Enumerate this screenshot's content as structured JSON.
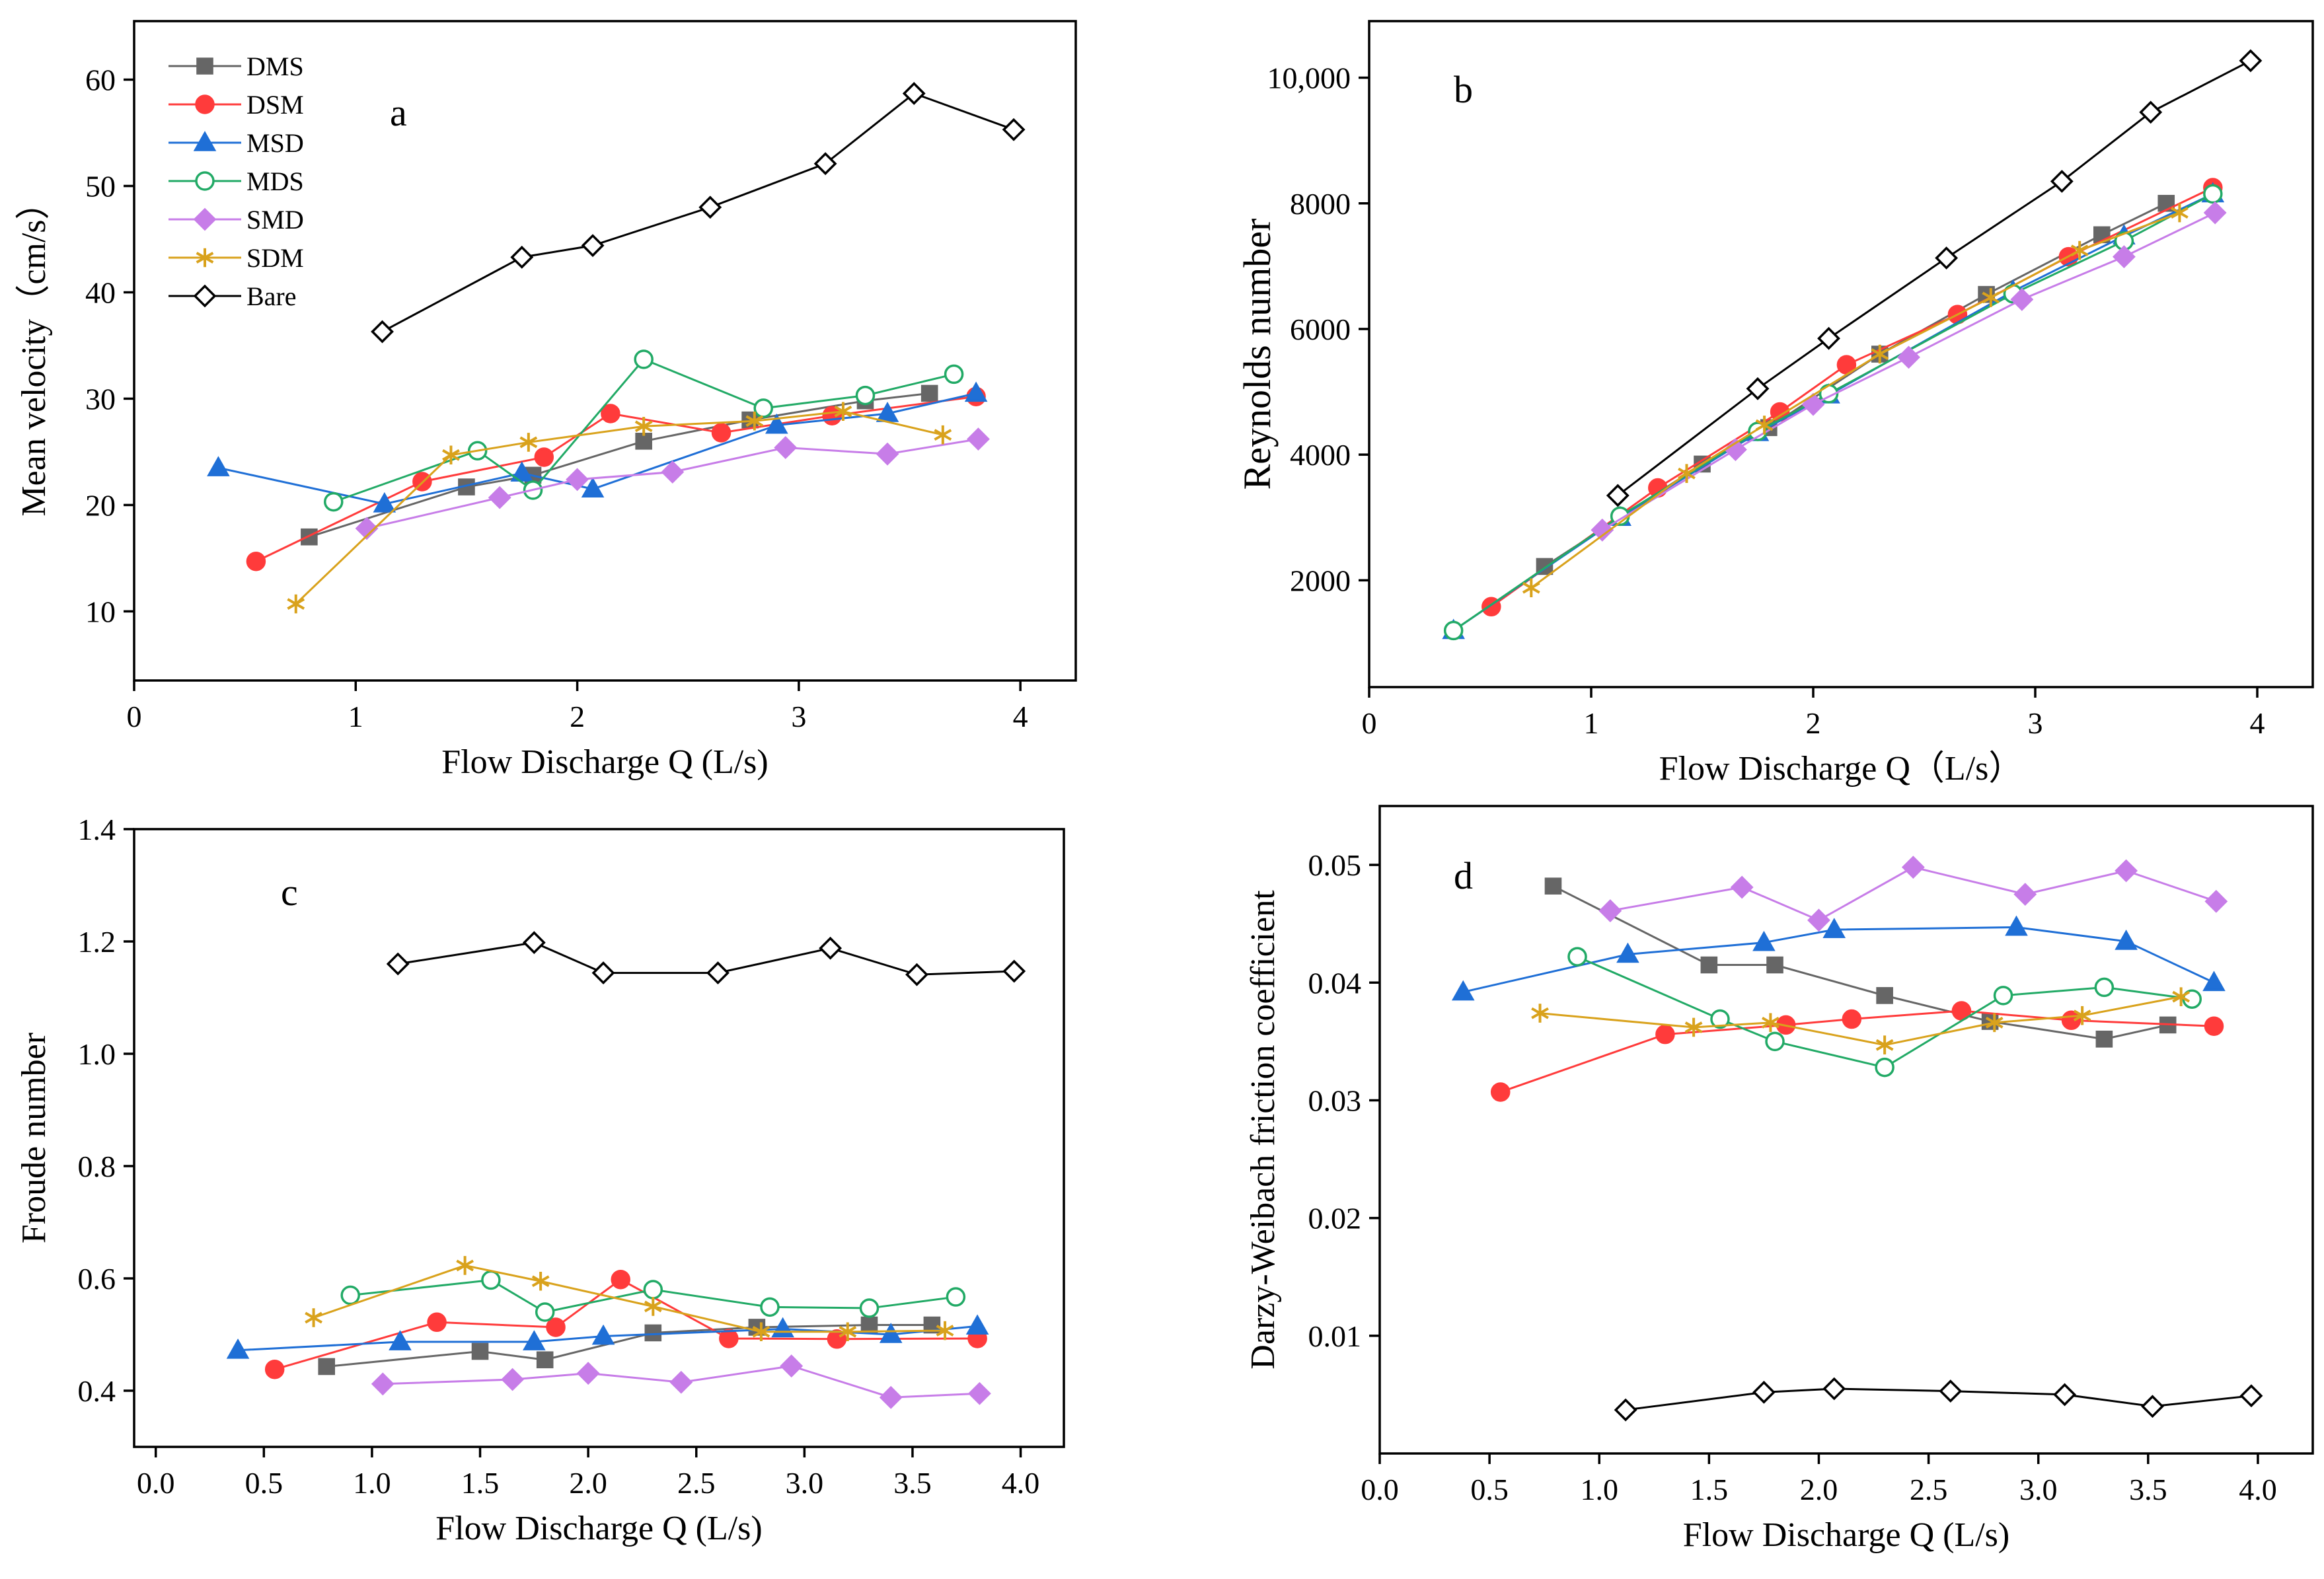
{
  "marker_styles": {
    "DMS": {
      "color": "#666666",
      "shape": "square",
      "fill": true
    },
    "DSM": {
      "color": "#ff3b3b",
      "shape": "circle",
      "fill": true
    },
    "MSD": {
      "color": "#1f6fd6",
      "shape": "triangle",
      "fill": true
    },
    "MDS": {
      "color": "#22aa66",
      "shape": "circle",
      "fill": false
    },
    "SMD": {
      "color": "#c77de8",
      "shape": "diamond",
      "fill": true
    },
    "SDM": {
      "color": "#d9a21c",
      "shape": "asterisk",
      "fill": false
    },
    "Bare": {
      "color": "#000000",
      "shape": "diamond",
      "fill": false
    }
  },
  "chart_data": [
    {
      "type": "line",
      "panel_label": "a",
      "xlabel": "Flow Discharge Q (L/s)",
      "ylabel": "Mean velocity（cm/s）",
      "xlim": [
        0,
        4.25
      ],
      "ylim": [
        3.5,
        65.5
      ],
      "xticks": [
        0,
        1,
        2,
        3,
        4
      ],
      "xtick_labels": [
        "0",
        "1",
        "2",
        "3",
        "4"
      ],
      "yticks": [
        10,
        20,
        30,
        40,
        50,
        60
      ],
      "ytick_labels": [
        "10",
        "20",
        "30",
        "40",
        "50",
        "60"
      ],
      "legend": {
        "position": "top-left",
        "entries": [
          "DMS",
          "DSM",
          "MSD",
          "MDS",
          "SMD",
          "SDM",
          "Bare"
        ]
      },
      "series": [
        {
          "name": "DMS",
          "x": [
            0.79,
            1.5,
            1.8,
            2.3,
            2.78,
            3.3,
            3.59
          ],
          "y": [
            17.0,
            21.7,
            22.8,
            26.0,
            28.0,
            29.8,
            30.5
          ]
        },
        {
          "name": "DSM",
          "x": [
            0.55,
            1.3,
            1.85,
            2.15,
            2.65,
            3.15,
            3.8
          ],
          "y": [
            14.7,
            22.2,
            24.5,
            28.6,
            26.8,
            28.4,
            30.2
          ]
        },
        {
          "name": "MSD",
          "x": [
            0.38,
            1.13,
            1.75,
            2.07,
            2.9,
            3.4,
            3.8
          ],
          "y": [
            23.5,
            20.1,
            23.0,
            21.5,
            27.5,
            28.6,
            30.5
          ]
        },
        {
          "name": "MDS",
          "x": [
            0.9,
            1.55,
            1.8,
            2.3,
            2.84,
            3.3,
            3.7
          ],
          "y": [
            20.3,
            25.1,
            21.4,
            33.7,
            29.1,
            30.3,
            32.3
          ]
        },
        {
          "name": "SMD",
          "x": [
            1.05,
            1.65,
            2.0,
            2.43,
            2.94,
            3.4,
            3.81
          ],
          "y": [
            17.8,
            20.7,
            22.4,
            23.1,
            25.4,
            24.8,
            26.2
          ]
        },
        {
          "name": "SDM",
          "x": [
            0.73,
            1.43,
            1.78,
            2.3,
            2.8,
            3.2,
            3.65
          ],
          "y": [
            10.7,
            24.7,
            25.9,
            27.4,
            27.9,
            28.8,
            26.6
          ]
        },
        {
          "name": "Bare",
          "x": [
            1.12,
            1.75,
            2.07,
            2.6,
            3.12,
            3.52,
            3.97
          ],
          "y": [
            36.3,
            43.3,
            44.4,
            48.0,
            52.1,
            58.7,
            55.3
          ]
        }
      ]
    },
    {
      "type": "line",
      "panel_label": "b",
      "xlabel": "Flow Discharge Q（L/s）",
      "ylabel": "Reynolds number",
      "xlim": [
        0,
        4.25
      ],
      "ylim": [
        300,
        10900
      ],
      "xticks": [
        0,
        1,
        2,
        3,
        4
      ],
      "xtick_labels": [
        "0",
        "1",
        "2",
        "3",
        "4"
      ],
      "yticks": [
        2000,
        4000,
        6000,
        8000,
        10000
      ],
      "ytick_labels": [
        "2000",
        "4000",
        "6000",
        "8000",
        "10,000"
      ],
      "legend": null,
      "series": [
        {
          "name": "DMS",
          "x": [
            0.79,
            1.5,
            1.8,
            2.3,
            2.78,
            3.3,
            3.59
          ],
          "y": [
            2220,
            3850,
            4430,
            5600,
            6550,
            7500,
            8000
          ]
        },
        {
          "name": "DSM",
          "x": [
            0.55,
            1.3,
            1.85,
            2.15,
            2.65,
            3.15,
            3.8
          ],
          "y": [
            1580,
            3470,
            4680,
            5430,
            6230,
            7150,
            8250
          ]
        },
        {
          "name": "MSD",
          "x": [
            0.38,
            1.13,
            1.75,
            2.07,
            2.9,
            3.4,
            3.8
          ],
          "y": [
            1200,
            3000,
            4350,
            4950,
            6600,
            7480,
            8150
          ]
        },
        {
          "name": "MDS",
          "x": [
            0.38,
            1.13,
            1.75,
            2.07,
            2.9,
            3.4,
            3.8
          ],
          "y": [
            1200,
            3020,
            4370,
            4970,
            6560,
            7400,
            8150
          ]
        },
        {
          "name": "SMD",
          "x": [
            1.05,
            1.65,
            2.0,
            2.43,
            2.94,
            3.4,
            3.81
          ],
          "y": [
            2800,
            4080,
            4800,
            5550,
            6470,
            7150,
            7850
          ]
        },
        {
          "name": "SDM",
          "x": [
            0.73,
            1.43,
            1.78,
            2.3,
            2.8,
            3.2,
            3.65
          ],
          "y": [
            1880,
            3700,
            4470,
            5600,
            6500,
            7250,
            7850
          ]
        },
        {
          "name": "Bare",
          "x": [
            1.12,
            1.75,
            2.07,
            2.6,
            3.12,
            3.52,
            3.97
          ],
          "y": [
            3350,
            5050,
            5850,
            7130,
            8350,
            9450,
            10270
          ]
        }
      ]
    },
    {
      "type": "line",
      "panel_label": "c",
      "xlabel": "Flow Discharge Q (L/s)",
      "ylabel": "Froude number",
      "xlim": [
        -0.1,
        4.2
      ],
      "ylim": [
        0.3,
        1.4
      ],
      "xticks": [
        0.0,
        0.5,
        1.0,
        1.5,
        2.0,
        2.5,
        3.0,
        3.5,
        4.0
      ],
      "xtick_labels": [
        "0.0",
        "0.5",
        "1.0",
        "1.5",
        "2.0",
        "2.5",
        "3.0",
        "3.5",
        "4.0"
      ],
      "yticks": [
        0.4,
        0.6,
        0.8,
        1.0,
        1.2,
        1.4
      ],
      "ytick_labels": [
        "0.4",
        "0.6",
        "0.8",
        "1.0",
        "1.2",
        "1.4"
      ],
      "legend": null,
      "series": [
        {
          "name": "DMS",
          "x": [
            0.79,
            1.5,
            1.8,
            2.3,
            2.78,
            3.3,
            3.59
          ],
          "y": [
            0.443,
            0.47,
            0.455,
            0.503,
            0.513,
            0.517,
            0.517
          ]
        },
        {
          "name": "DSM",
          "x": [
            0.55,
            1.3,
            1.85,
            2.15,
            2.65,
            3.15,
            3.8
          ],
          "y": [
            0.438,
            0.522,
            0.513,
            0.598,
            0.493,
            0.492,
            0.493
          ]
        },
        {
          "name": "MSD",
          "x": [
            0.38,
            1.13,
            1.75,
            2.07,
            2.9,
            3.4,
            3.8
          ],
          "y": [
            0.472,
            0.487,
            0.487,
            0.497,
            0.51,
            0.5,
            0.515
          ]
        },
        {
          "name": "MDS",
          "x": [
            0.9,
            1.55,
            1.8,
            2.3,
            2.84,
            3.3,
            3.7
          ],
          "y": [
            0.57,
            0.597,
            0.54,
            0.58,
            0.549,
            0.547,
            0.567
          ]
        },
        {
          "name": "SMD",
          "x": [
            1.05,
            1.65,
            2.0,
            2.43,
            2.94,
            3.4,
            3.81
          ],
          "y": [
            0.412,
            0.42,
            0.431,
            0.415,
            0.444,
            0.388,
            0.395
          ]
        },
        {
          "name": "SDM",
          "x": [
            0.73,
            1.43,
            1.78,
            2.3,
            2.8,
            3.2,
            3.65
          ],
          "y": [
            0.53,
            0.623,
            0.595,
            0.55,
            0.505,
            0.505,
            0.507
          ]
        },
        {
          "name": "Bare",
          "x": [
            1.12,
            1.75,
            2.07,
            2.6,
            3.12,
            3.52,
            3.97
          ],
          "y": [
            1.16,
            1.198,
            1.144,
            1.144,
            1.188,
            1.141,
            1.147
          ]
        }
      ]
    },
    {
      "type": "line",
      "panel_label": "d",
      "xlabel": "Flow Discharge Q (L/s)",
      "ylabel": "Darzy-Weibach friction coefficient",
      "xlim": [
        0,
        4.25
      ],
      "ylim": [
        0,
        0.055
      ],
      "xticks": [
        0.0,
        0.5,
        1.0,
        1.5,
        2.0,
        2.5,
        3.0,
        3.5,
        4.0
      ],
      "xtick_labels": [
        "0.0",
        "0.5",
        "1.0",
        "1.5",
        "2.0",
        "2.5",
        "3.0",
        "3.5",
        "4.0"
      ],
      "yticks": [
        0.01,
        0.02,
        0.03,
        0.04,
        0.05
      ],
      "ytick_labels": [
        "0.01",
        "0.02",
        "0.03",
        "0.04",
        "0.05"
      ],
      "legend": null,
      "series": [
        {
          "name": "DMS",
          "x": [
            0.79,
            1.5,
            1.8,
            2.3,
            2.78,
            3.3,
            3.59
          ],
          "y": [
            0.0482,
            0.0415,
            0.0415,
            0.0389,
            0.0367,
            0.0352,
            0.0364
          ]
        },
        {
          "name": "DSM",
          "x": [
            0.55,
            1.3,
            1.85,
            2.15,
            2.65,
            3.15,
            3.8
          ],
          "y": [
            0.0307,
            0.0356,
            0.0364,
            0.0369,
            0.0376,
            0.0368,
            0.0363
          ]
        },
        {
          "name": "MSD",
          "x": [
            0.38,
            1.13,
            1.75,
            2.07,
            2.9,
            3.4,
            3.8
          ],
          "y": [
            0.0392,
            0.0424,
            0.0434,
            0.0445,
            0.0447,
            0.0435,
            0.04
          ]
        },
        {
          "name": "MDS",
          "x": [
            0.9,
            1.55,
            1.8,
            2.3,
            2.84,
            3.3,
            3.7
          ],
          "y": [
            0.0422,
            0.0369,
            0.035,
            0.0328,
            0.0389,
            0.0396,
            0.0386
          ]
        },
        {
          "name": "SMD",
          "x": [
            1.05,
            1.65,
            2.0,
            2.43,
            2.94,
            3.4,
            3.81
          ],
          "y": [
            0.0461,
            0.0481,
            0.0453,
            0.0498,
            0.0475,
            0.0495,
            0.0469
          ]
        },
        {
          "name": "SDM",
          "x": [
            0.73,
            1.43,
            1.78,
            2.3,
            2.8,
            3.2,
            3.65
          ],
          "y": [
            0.0374,
            0.0362,
            0.0366,
            0.0347,
            0.0366,
            0.0372,
            0.0388
          ]
        },
        {
          "name": "Bare",
          "x": [
            1.12,
            1.75,
            2.07,
            2.6,
            3.12,
            3.52,
            3.97
          ],
          "y": [
            0.0037,
            0.0052,
            0.0055,
            0.0053,
            0.005,
            0.004,
            0.0049
          ]
        }
      ]
    }
  ]
}
